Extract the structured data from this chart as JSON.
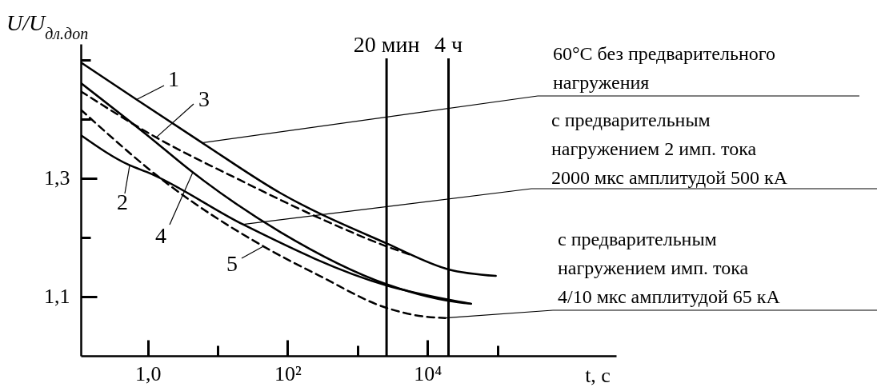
{
  "chart_data": {
    "type": "line",
    "ylabel": "U/U$_{дл.доп}$",
    "xlabel": "t, с",
    "log": "x",
    "xlim": [
      0.11,
      5000000
    ],
    "ylim": [
      1.0,
      1.527
    ],
    "xticks": [
      {
        "value": 1,
        "label": "1,0"
      },
      {
        "value": 10,
        "label": null
      },
      {
        "value": 100,
        "label": "10²"
      },
      {
        "value": 1000,
        "label": null
      },
      {
        "value": 10000,
        "label": "10⁴"
      },
      {
        "value": 100000,
        "label": null
      }
    ],
    "yticks": [
      {
        "value": 1.1,
        "label": "1,1"
      },
      {
        "value": 1.2,
        "label": null
      },
      {
        "value": 1.3,
        "label": "1,3"
      },
      {
        "value": 1.4,
        "label": null
      },
      {
        "value": 1.5,
        "label": null
      }
    ],
    "grid": false,
    "marker": "none",
    "series": [
      {
        "color": "#000000",
        "line_style": "solid",
        "x": [
          0.11,
          0.69,
          6,
          79,
          2600,
          20000,
          95000
        ],
        "values": [
          1.496,
          1.433,
          1.36,
          1.275,
          1.19,
          1.146,
          1.135
        ]
      },
      {
        "color": "#000000",
        "line_style": "solid",
        "x": [
          0.11,
          0.55,
          1,
          23,
          2600,
          20000,
          42000
        ],
        "values": [
          1.373,
          1.322,
          1.31,
          1.222,
          1.119,
          1.095,
          1.088
        ]
      },
      {
        "color": "#000000",
        "line_style": "dashed",
        "x": [
          0.11,
          1.32,
          20,
          417,
          2600,
          5600
        ],
        "values": [
          1.447,
          1.369,
          1.298,
          1.224,
          1.185,
          1.171
        ]
      },
      {
        "color": "#000000",
        "line_style": "solid",
        "x": [
          0.11,
          1,
          4.4,
          79,
          2600,
          20000,
          42000
        ],
        "values": [
          1.461,
          1.372,
          1.31,
          1.209,
          1.121,
          1.093,
          1.088
        ]
      },
      {
        "color": "#000000",
        "line_style": "dashed",
        "x": [
          0.11,
          1.9,
          45,
          288,
          2600,
          9500,
          18000
        ],
        "values": [
          1.416,
          1.291,
          1.185,
          1.135,
          1.081,
          1.066,
          1.064
        ]
      }
    ],
    "ref_lines": [
      {
        "axis": "x",
        "value": 2600,
        "label": "20 мин"
      },
      {
        "axis": "x",
        "value": 20000,
        "label": "4 ч"
      }
    ],
    "annotations": [
      {
        "text": "1",
        "x": 0.69,
        "y": 1.433
      },
      {
        "text": "2",
        "x": 0.55,
        "y": 1.322
      },
      {
        "text": "3",
        "x": 1.32,
        "y": 1.369
      },
      {
        "text": "4",
        "x": 4.4,
        "y": 1.31
      },
      {
        "text": "5",
        "x": 45,
        "y": 1.185
      },
      {
        "text": "60°C без предварительного\nнагружения",
        "x": 6,
        "y": 1.36
      },
      {
        "text": "с предварительным\nнагружением 2 имп. тока\n2000 мкс амплитудой 500 кА",
        "x": 23,
        "y": 1.222
      },
      {
        "text": "с предварительным\nнагружением имп. тока\n4/10 мкс амплитудой 65 кА",
        "x": 18000,
        "y": 1.064
      }
    ]
  }
}
